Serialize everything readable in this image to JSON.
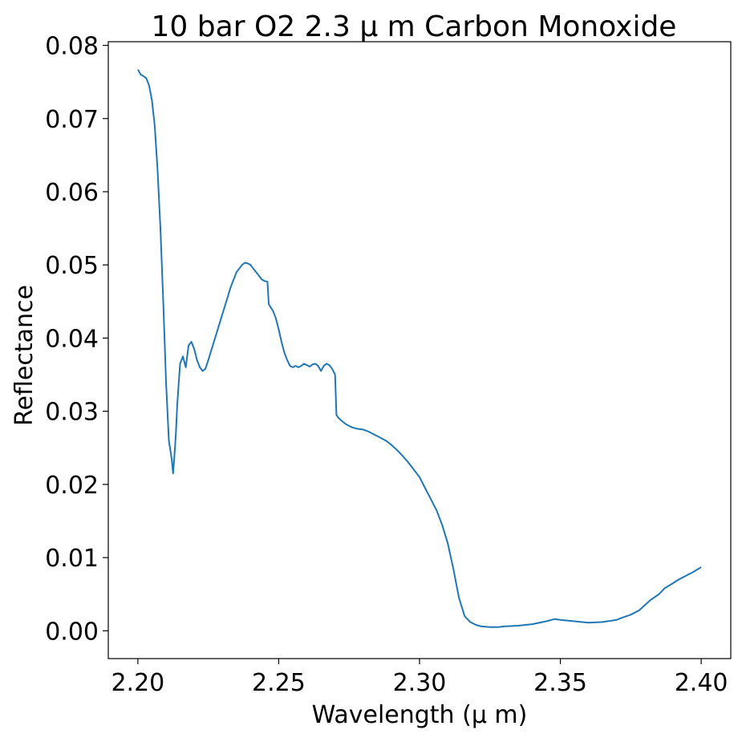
{
  "chart_data": {
    "type": "line",
    "title": "10 bar O2 2.3 μ m Carbon Monoxide",
    "xlabel": "Wavelength (μ m)",
    "ylabel": "Reflectance",
    "xlim": [
      2.1895,
      2.4105
    ],
    "ylim": [
      -0.0038,
      0.0805
    ],
    "xticks": [
      "2.20",
      "2.25",
      "2.30",
      "2.35",
      "2.40"
    ],
    "yticks": [
      "0.00",
      "0.01",
      "0.02",
      "0.03",
      "0.04",
      "0.05",
      "0.06",
      "0.07",
      "0.08"
    ],
    "grid": false,
    "legend": "none",
    "series": [
      {
        "color": "#1f77b4",
        "x": [
          2.2,
          2.201,
          2.202,
          2.203,
          2.204,
          2.205,
          2.206,
          2.207,
          2.208,
          2.209,
          2.21,
          2.211,
          2.212,
          2.2125,
          2.213,
          2.2135,
          2.214,
          2.215,
          2.216,
          2.217,
          2.218,
          2.219,
          2.22,
          2.221,
          2.222,
          2.223,
          2.224,
          2.225,
          2.227,
          2.229,
          2.231,
          2.233,
          2.235,
          2.237,
          2.238,
          2.239,
          2.24,
          2.241,
          2.242,
          2.243,
          2.244,
          2.245,
          2.246,
          2.2465,
          2.247,
          2.248,
          2.249,
          2.25,
          2.251,
          2.252,
          2.253,
          2.254,
          2.255,
          2.256,
          2.257,
          2.258,
          2.259,
          2.26,
          2.261,
          2.262,
          2.263,
          2.264,
          2.265,
          2.266,
          2.267,
          2.268,
          2.269,
          2.27,
          2.2705,
          2.271,
          2.272,
          2.274,
          2.276,
          2.278,
          2.28,
          2.282,
          2.284,
          2.286,
          2.288,
          2.29,
          2.292,
          2.294,
          2.296,
          2.298,
          2.3,
          2.302,
          2.304,
          2.306,
          2.308,
          2.31,
          2.312,
          2.314,
          2.316,
          2.318,
          2.32,
          2.322,
          2.325,
          2.328,
          2.33,
          2.335,
          2.34,
          2.345,
          2.348,
          2.35,
          2.355,
          2.36,
          2.365,
          2.37,
          2.372,
          2.375,
          2.378,
          2.38,
          2.382,
          2.385,
          2.387,
          2.39,
          2.392,
          2.395,
          2.397,
          2.4
        ],
        "y": [
          0.0767,
          0.076,
          0.0758,
          0.0755,
          0.0745,
          0.0725,
          0.069,
          0.063,
          0.055,
          0.045,
          0.034,
          0.026,
          0.0235,
          0.0215,
          0.024,
          0.027,
          0.031,
          0.0365,
          0.0375,
          0.036,
          0.039,
          0.0395,
          0.0385,
          0.037,
          0.036,
          0.0355,
          0.0358,
          0.037,
          0.0395,
          0.042,
          0.0445,
          0.047,
          0.049,
          0.05,
          0.0503,
          0.0502,
          0.05,
          0.0495,
          0.049,
          0.0485,
          0.048,
          0.0478,
          0.0477,
          0.0446,
          0.0443,
          0.0437,
          0.0427,
          0.0412,
          0.0395,
          0.038,
          0.037,
          0.0362,
          0.036,
          0.0362,
          0.036,
          0.0362,
          0.0365,
          0.0363,
          0.0361,
          0.0364,
          0.0365,
          0.0362,
          0.0355,
          0.0362,
          0.0365,
          0.0363,
          0.0358,
          0.035,
          0.0295,
          0.0292,
          0.0288,
          0.0282,
          0.0278,
          0.0276,
          0.0275,
          0.0272,
          0.0268,
          0.0264,
          0.026,
          0.0254,
          0.0247,
          0.0239,
          0.023,
          0.022,
          0.021,
          0.0195,
          0.018,
          0.0165,
          0.0145,
          0.012,
          0.0085,
          0.0045,
          0.002,
          0.0012,
          0.0008,
          0.0006,
          0.0005,
          0.0005,
          0.0006,
          0.0007,
          0.0009,
          0.0013,
          0.0016,
          0.0015,
          0.0013,
          0.0011,
          0.0012,
          0.0015,
          0.0018,
          0.0022,
          0.0028,
          0.0035,
          0.0042,
          0.005,
          0.0058,
          0.0065,
          0.007,
          0.0076,
          0.008,
          0.0087
        ]
      }
    ]
  }
}
